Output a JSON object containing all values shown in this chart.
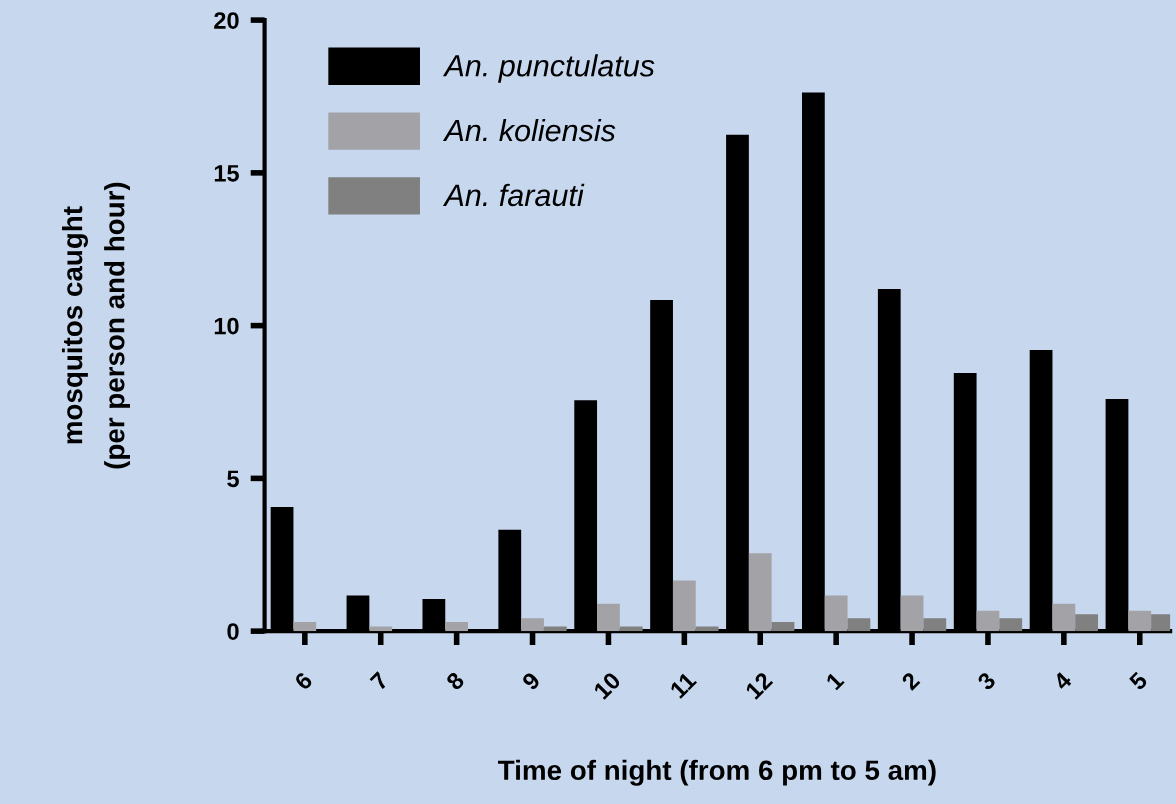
{
  "chart_data": {
    "type": "bar",
    "xlabel": "Time of night (from 6 pm to 5 am)",
    "ylabel": "mosquitos caught\n(per person and hour)",
    "categories": [
      "6",
      "7",
      "8",
      "9",
      "10",
      "11",
      "12",
      "1",
      "2",
      "3",
      "4",
      "5"
    ],
    "series": [
      {
        "name": "An. punctulatus",
        "color": "#000000",
        "values": [
          4.06,
          1.17,
          1.05,
          3.32,
          7.56,
          10.84,
          16.25,
          17.63,
          11.2,
          8.45,
          9.2,
          7.6
        ]
      },
      {
        "name": "An. koliensis",
        "color": "#a3a2a7",
        "values": [
          0.3,
          0.15,
          0.3,
          0.42,
          0.9,
          1.66,
          2.55,
          1.17,
          1.17,
          0.67,
          0.9,
          0.67
        ]
      },
      {
        "name": "An. farauti",
        "color": "#808080",
        "values": [
          0,
          0,
          0,
          0.15,
          0.15,
          0.15,
          0.3,
          0.42,
          0.42,
          0.42,
          0.55,
          0.55
        ]
      }
    ],
    "ylim": [
      0,
      20
    ],
    "yticks": [
      0,
      5,
      10,
      15,
      20
    ],
    "grid": false,
    "legend": "top left"
  }
}
